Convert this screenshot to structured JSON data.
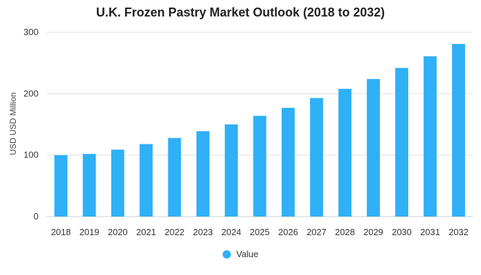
{
  "chart_data": {
    "type": "bar",
    "title": "U.K. Frozen Pastry Market Outlook (2018 to 2032)",
    "xlabel": "",
    "ylabel": "USD USD Million",
    "categories": [
      "2018",
      "2019",
      "2020",
      "2021",
      "2022",
      "2023",
      "2024",
      "2025",
      "2026",
      "2027",
      "2028",
      "2029",
      "2030",
      "2031",
      "2032"
    ],
    "series": [
      {
        "name": "Value",
        "values": [
          100,
          102,
          109,
          118,
          128,
          139,
          150,
          164,
          177,
          193,
          208,
          224,
          242,
          261,
          281
        ]
      }
    ],
    "ylim": [
      0,
      300
    ],
    "yticks": [
      0,
      100,
      200,
      300
    ],
    "grid": true,
    "legend_position": "bottom",
    "colors": {
      "bar": "#2fb0f7",
      "grid": "#e0e0e0",
      "axis": "#cccccc"
    }
  }
}
